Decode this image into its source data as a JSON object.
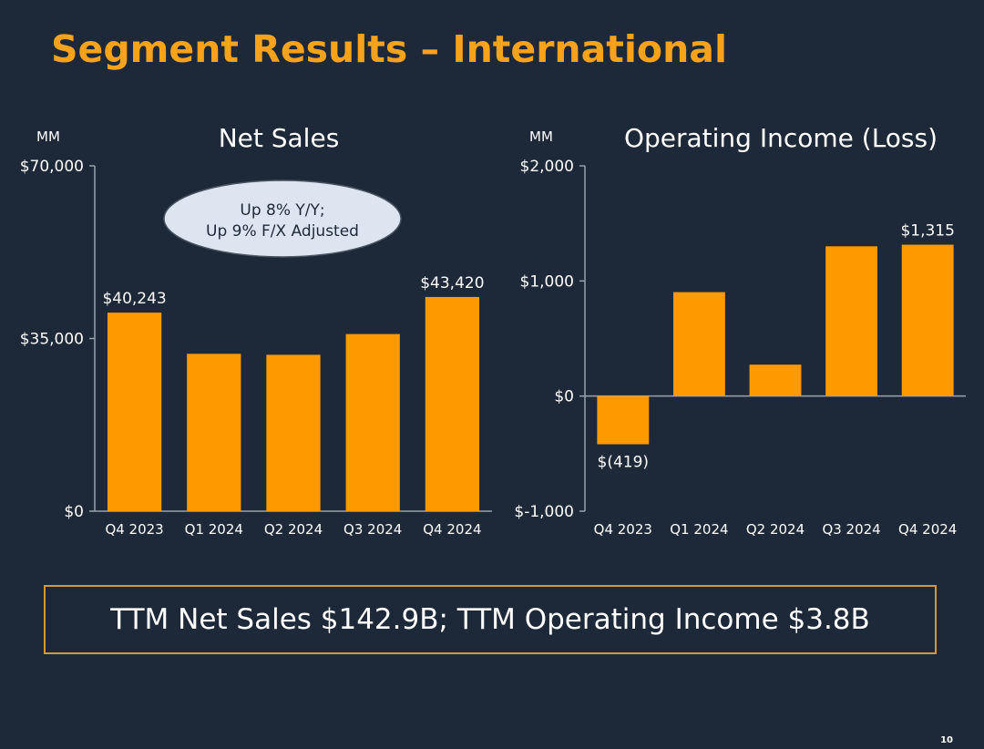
{
  "slide": {
    "title": "Segment Results – International",
    "summary": "TTM Net Sales $142.9B; TTM Operating Income $3.8B",
    "page_number": "10"
  },
  "colors": {
    "bar": "#ff9900",
    "title": "#f7a21b",
    "background": "#1d2838",
    "callout_fill": "#dde6f0",
    "box_border": "#d59a2a"
  },
  "chart_data": [
    {
      "id": "net-sales",
      "type": "bar",
      "title": "Net Sales",
      "unit_label": "MM",
      "categories": [
        "Q4 2023",
        "Q1 2024",
        "Q2 2024",
        "Q3 2024",
        "Q4 2024"
      ],
      "values": [
        40243,
        31900,
        31700,
        35900,
        43420
      ],
      "data_labels": [
        "$40,243",
        "",
        "",
        "",
        "$43,420"
      ],
      "ylim": [
        0,
        70000
      ],
      "yticks": [
        0,
        35000,
        70000
      ],
      "ytick_labels": [
        "$0",
        "$35,000",
        "$70,000"
      ],
      "callout": [
        "Up 8% Y/Y;",
        "Up 9% F/X Adjusted"
      ],
      "grid": false
    },
    {
      "id": "operating-income",
      "type": "bar",
      "title": "Operating Income (Loss)",
      "unit_label": "MM",
      "categories": [
        "Q4 2023",
        "Q1 2024",
        "Q2 2024",
        "Q3 2024",
        "Q4 2024"
      ],
      "values": [
        -419,
        903,
        273,
        1301,
        1315
      ],
      "data_labels": [
        "$(419)",
        "",
        "",
        "",
        "$1,315"
      ],
      "ylim": [
        -1000,
        2000
      ],
      "yticks": [
        -1000,
        0,
        1000,
        2000
      ],
      "ytick_labels": [
        "$-1,000",
        "$0",
        "$1,000",
        "$2,000"
      ],
      "grid": false
    }
  ]
}
